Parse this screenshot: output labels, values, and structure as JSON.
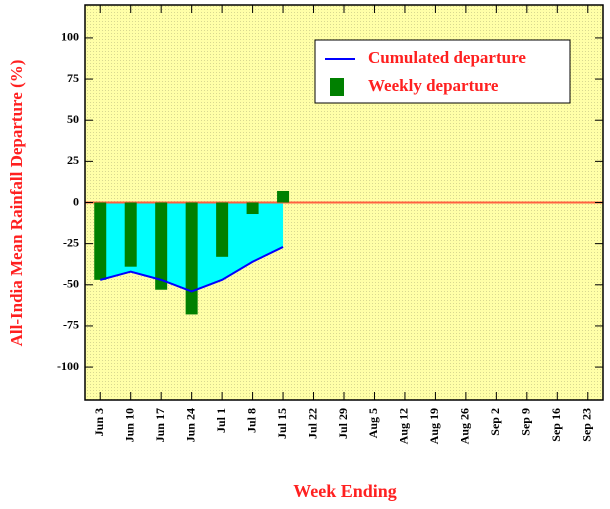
{
  "chart_data": {
    "type": "bar",
    "x_label": "Week Ending",
    "y_label": "All-India Mean Rainfall Departure (%)",
    "categories": [
      "Jun 3",
      "Jun 10",
      "Jun 17",
      "Jun 24",
      "Jul 1",
      "Jul 8",
      "Jul 15",
      "Jul 22",
      "Jul 29",
      "Aug 5",
      "Aug 12",
      "Aug 19",
      "Aug 26",
      "Sep 2",
      "Sep 9",
      "Sep 16",
      "Sep 23"
    ],
    "series": [
      {
        "name": "Cumulated departure",
        "type": "line",
        "color": "#0000ff",
        "fill_color": "#00ffff",
        "values": [
          -47,
          -42,
          -47,
          -54,
          -47,
          -36,
          -27,
          null,
          null,
          null,
          null,
          null,
          null,
          null,
          null,
          null,
          null
        ]
      },
      {
        "name": "Weekly departure",
        "type": "bar",
        "color": "#008000",
        "values": [
          -47,
          -39,
          -53,
          -68,
          -33,
          -7,
          7,
          null,
          null,
          null,
          null,
          null,
          null,
          null,
          null,
          null,
          null
        ]
      }
    ],
    "ylim": [
      -120,
      120
    ],
    "yticks": [
      100,
      75,
      50,
      25,
      0,
      -25,
      -50,
      -75,
      -100
    ],
    "zero_line_color": "#ff6040",
    "background": "#ffff99"
  }
}
